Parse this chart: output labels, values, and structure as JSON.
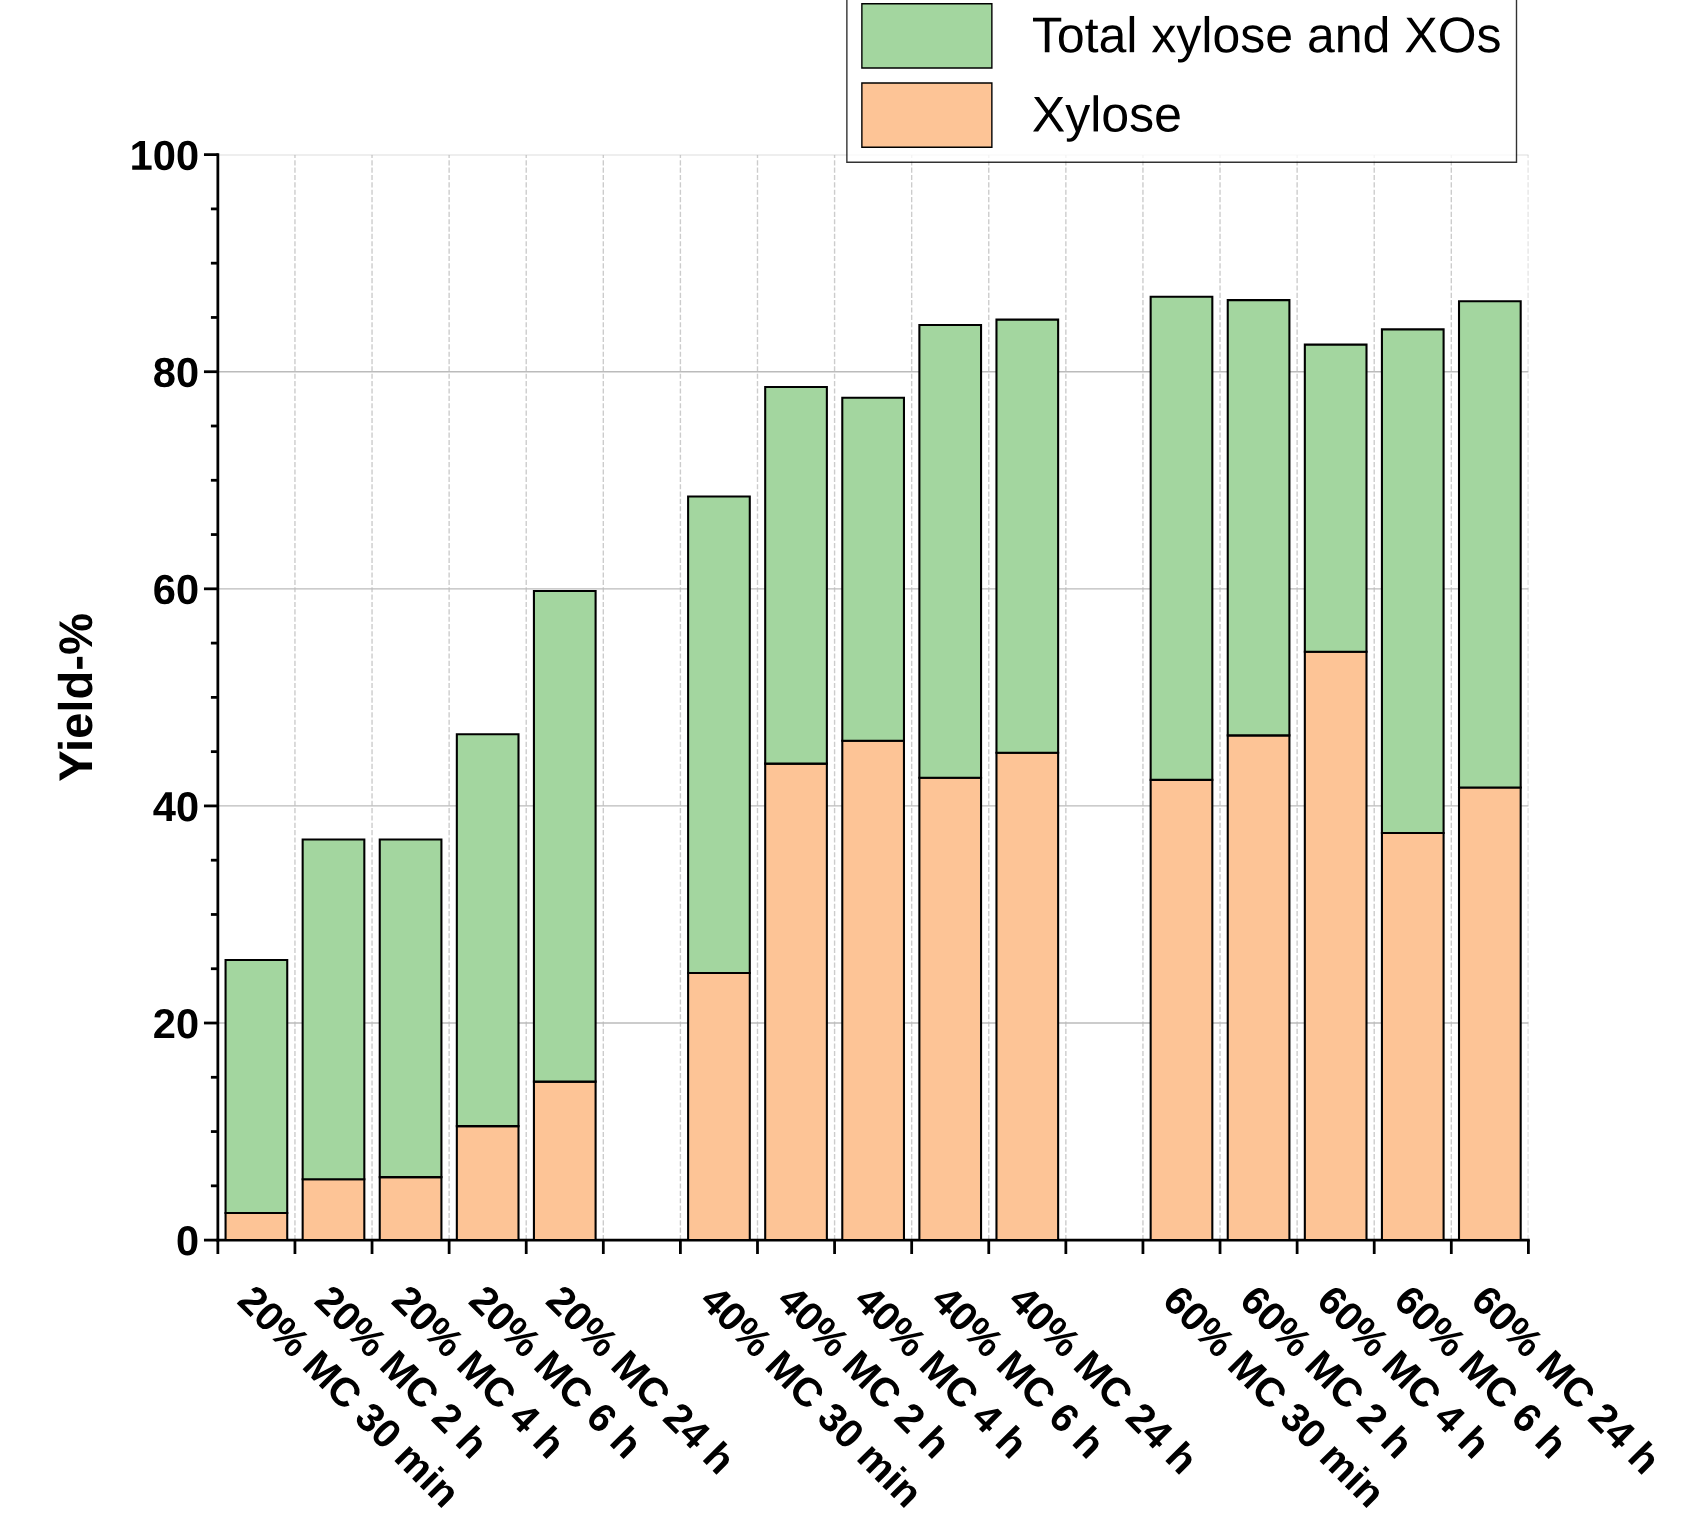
{
  "chart_data": {
    "type": "bar",
    "ylabel": "Yield-%",
    "stacked": true,
    "categories": [
      "20% MC 30 min",
      "20% MC 2 h",
      "20% MC 4 h",
      "20% MC 6 h",
      "20% MC 24 h",
      null,
      "40% MC 30 min",
      "40% MC 2 h",
      "40% MC 4 h",
      "40% MC 6 h",
      "40% MC 24 h",
      null,
      "60% MC 30 min",
      "60% MC 2 h",
      "60% MC 4 h",
      "60% MC 6 h",
      "60% MC 24 h"
    ],
    "series": [
      {
        "name": "Xylose",
        "color": "#fdc496",
        "values": [
          2.5,
          5.6,
          5.8,
          10.5,
          14.6,
          null,
          24.6,
          43.9,
          46.0,
          42.6,
          44.9,
          null,
          42.4,
          46.5,
          54.2,
          37.5,
          41.7
        ]
      },
      {
        "name": "Total xylose and XOs",
        "color": "#a3d69f",
        "values": [
          23.3,
          31.3,
          31.1,
          36.1,
          45.2,
          null,
          43.9,
          34.7,
          31.6,
          41.7,
          39.9,
          null,
          44.5,
          40.1,
          28.3,
          46.4,
          44.8
        ]
      }
    ],
    "ylim": [
      0,
      100
    ],
    "yticks": [
      0,
      20,
      40,
      60,
      80,
      100
    ],
    "grid": true,
    "legend": "top right"
  }
}
